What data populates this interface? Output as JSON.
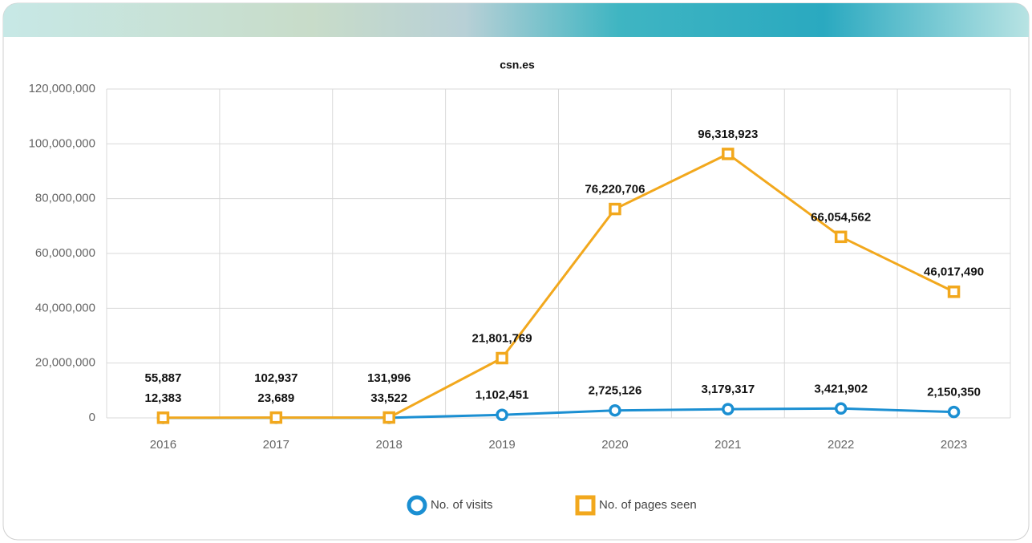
{
  "chart_data": {
    "type": "line",
    "title": "csn.es",
    "categories": [
      "2016",
      "2017",
      "2018",
      "2019",
      "2020",
      "2021",
      "2022",
      "2023"
    ],
    "series": [
      {
        "name": "No. of visits",
        "color": "#1b8fd2",
        "marker": "circle",
        "values": [
          12383,
          23689,
          33522,
          1102451,
          2725126,
          3179317,
          3421902,
          2150350
        ],
        "value_labels": [
          "12,383",
          "23,689",
          "33,522",
          "1,102,451",
          "2,725,126",
          "3,179,317",
          "3,421,902",
          "2,150,350"
        ]
      },
      {
        "name": "No. of pages seen",
        "color": "#f2a81d",
        "marker": "square",
        "values": [
          55887,
          102937,
          131996,
          21801769,
          76220706,
          96318923,
          66054562,
          46017490
        ],
        "value_labels": [
          "55,887",
          "102,937",
          "131,996",
          "21,801,769",
          "76,220,706",
          "96,318,923",
          "66,054,562",
          "46,017,490"
        ]
      }
    ],
    "ylim": [
      0,
      120000000
    ],
    "yticks": [
      0,
      {
        "value": 20000000,
        "label": "20,000,000"
      },
      {
        "value": 40000000,
        "label": "40,000,000"
      },
      {
        "value": 60000000,
        "label": "60,000,000"
      },
      {
        "value": 80000000,
        "label": "80,000,000"
      },
      {
        "value": 100000000,
        "label": "100,000,000"
      },
      {
        "value": 120000000,
        "label": "120,000,000"
      }
    ],
    "grid": true,
    "legend": "bottom"
  }
}
